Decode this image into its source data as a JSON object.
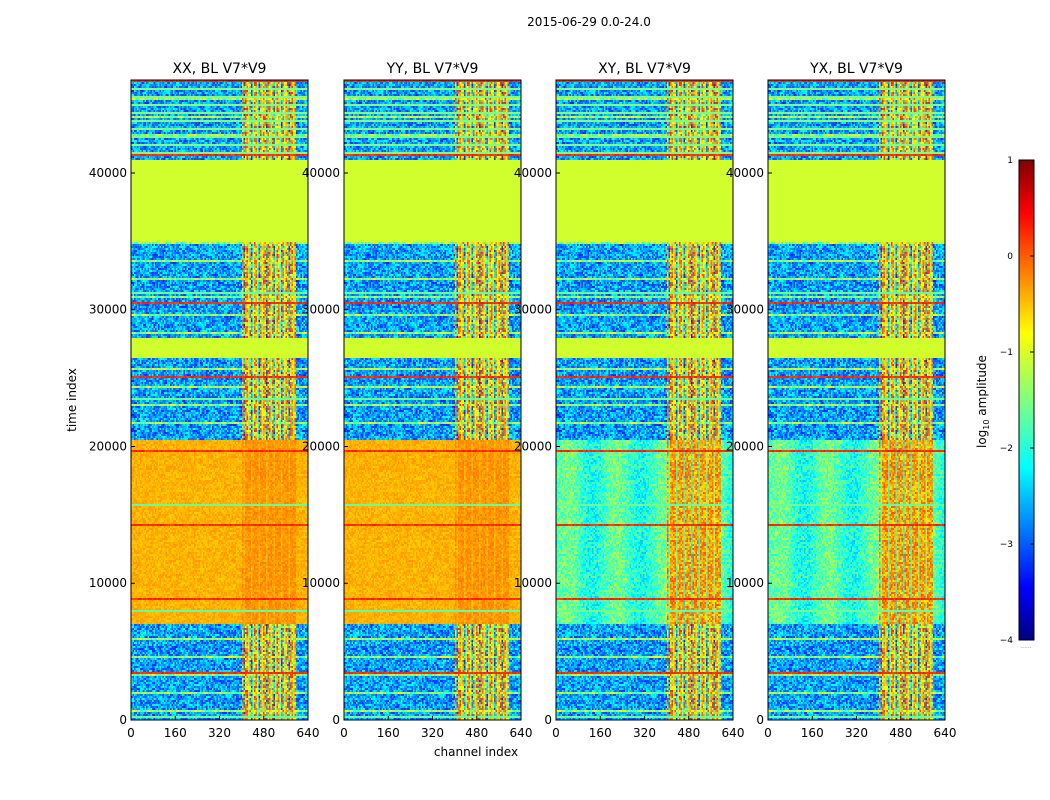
{
  "chart_data": {
    "type": "heatmap",
    "title": "2015-06-29 0.0-24.0",
    "xlabel": "channel index",
    "ylabel": "time index",
    "xlim": [
      0,
      640
    ],
    "ylim": [
      0,
      46800
    ],
    "xticks": [
      0,
      160,
      320,
      480,
      640
    ],
    "yticks": [
      0,
      10000,
      20000,
      30000,
      40000
    ],
    "colorbar": {
      "label_main": "log",
      "label_sub": "10",
      "label_rest": " amplitude",
      "range": [
        -4,
        1
      ],
      "ticks": [
        1,
        0,
        -1,
        -2,
        -3,
        -4
      ],
      "colormap": "jet",
      "below_marker": "......"
    },
    "panels": [
      {
        "name": "XX",
        "title": "XX, BL V7*V9",
        "cross": false
      },
      {
        "name": "YY",
        "title": "YY, BL V7*V9",
        "cross": false
      },
      {
        "name": "XY",
        "title": "XY, BL V7*V9",
        "cross": true
      },
      {
        "name": "YX",
        "title": "YX, BL V7*V9",
        "cross": true
      }
    ],
    "flagged_time_bands": [
      {
        "start": 26500,
        "end": 28000,
        "value": -1.1
      },
      {
        "start": 35000,
        "end": 41000,
        "value": -1.1
      }
    ],
    "bright_channel_range": [
      400,
      600
    ],
    "auto_bright_time_range": [
      7000,
      20500
    ]
  }
}
